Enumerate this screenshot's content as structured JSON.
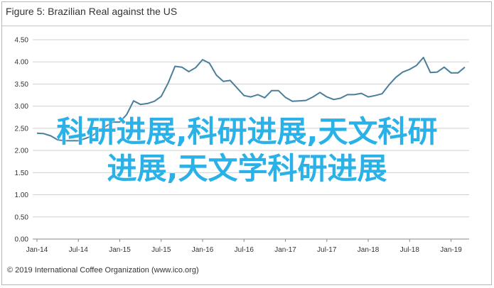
{
  "title": "Figure 5: Brazilian Real against the US",
  "footer": "© 2019 International Coffee Organization (www.ico.org)",
  "overlay": {
    "line1": "科研进展,科研进展,天文科研",
    "line2": "进展,天文学科研进展"
  },
  "colors": {
    "line": "#4a7f9c",
    "grid": "#d0d0d0",
    "overlay": "#29b1e8"
  },
  "chart_data": {
    "type": "line",
    "title": "",
    "xlabel": "",
    "ylabel": "",
    "ylim": [
      0,
      4.5
    ],
    "y_ticks": [
      "0.00",
      "0.50",
      "1.00",
      "1.50",
      "2.00",
      "2.50",
      "3.00",
      "3.50",
      "4.00",
      "4.50"
    ],
    "x_tick_labels": [
      "Jan-14",
      "Jul-14",
      "Jan-15",
      "Jul-15",
      "Jan-16",
      "Jul-16",
      "Jan-17",
      "Jul-17",
      "Jan-18",
      "Jul-18",
      "Jan-19"
    ],
    "grid": true,
    "x": [
      "Jan-14",
      "Feb-14",
      "Mar-14",
      "Apr-14",
      "May-14",
      "Jun-14",
      "Jul-14",
      "Aug-14",
      "Sep-14",
      "Oct-14",
      "Nov-14",
      "Dec-14",
      "Jan-15",
      "Feb-15",
      "Mar-15",
      "Apr-15",
      "May-15",
      "Jun-15",
      "Jul-15",
      "Aug-15",
      "Sep-15",
      "Oct-15",
      "Nov-15",
      "Dec-15",
      "Jan-16",
      "Feb-16",
      "Mar-16",
      "Apr-16",
      "May-16",
      "Jun-16",
      "Jul-16",
      "Aug-16",
      "Sep-16",
      "Oct-16",
      "Nov-16",
      "Dec-16",
      "Jan-17",
      "Feb-17",
      "Mar-17",
      "Apr-17",
      "May-17",
      "Jun-17",
      "Jul-17",
      "Aug-17",
      "Sep-17",
      "Oct-17",
      "Nov-17",
      "Dec-17",
      "Jan-18",
      "Feb-18",
      "Mar-18",
      "Apr-18",
      "May-18",
      "Jun-18",
      "Jul-18",
      "Aug-18",
      "Sep-18",
      "Oct-18",
      "Nov-18",
      "Dec-18",
      "Jan-19",
      "Feb-19",
      "Mar-19"
    ],
    "series": [
      {
        "values": [
          2.39,
          2.38,
          2.33,
          2.24,
          2.22,
          2.22,
          2.22,
          2.27,
          2.33,
          2.45,
          2.55,
          2.64,
          2.64,
          2.81,
          3.12,
          3.04,
          3.06,
          3.11,
          3.22,
          3.52,
          3.9,
          3.88,
          3.78,
          3.87,
          4.05,
          3.97,
          3.7,
          3.56,
          3.58,
          3.41,
          3.24,
          3.21,
          3.26,
          3.19,
          3.35,
          3.35,
          3.2,
          3.11,
          3.12,
          3.13,
          3.21,
          3.31,
          3.21,
          3.15,
          3.18,
          3.26,
          3.26,
          3.29,
          3.21,
          3.24,
          3.28,
          3.48,
          3.65,
          3.77,
          3.83,
          3.92,
          4.1,
          3.76,
          3.77,
          3.88,
          3.75,
          3.75,
          3.88
        ]
      }
    ]
  }
}
